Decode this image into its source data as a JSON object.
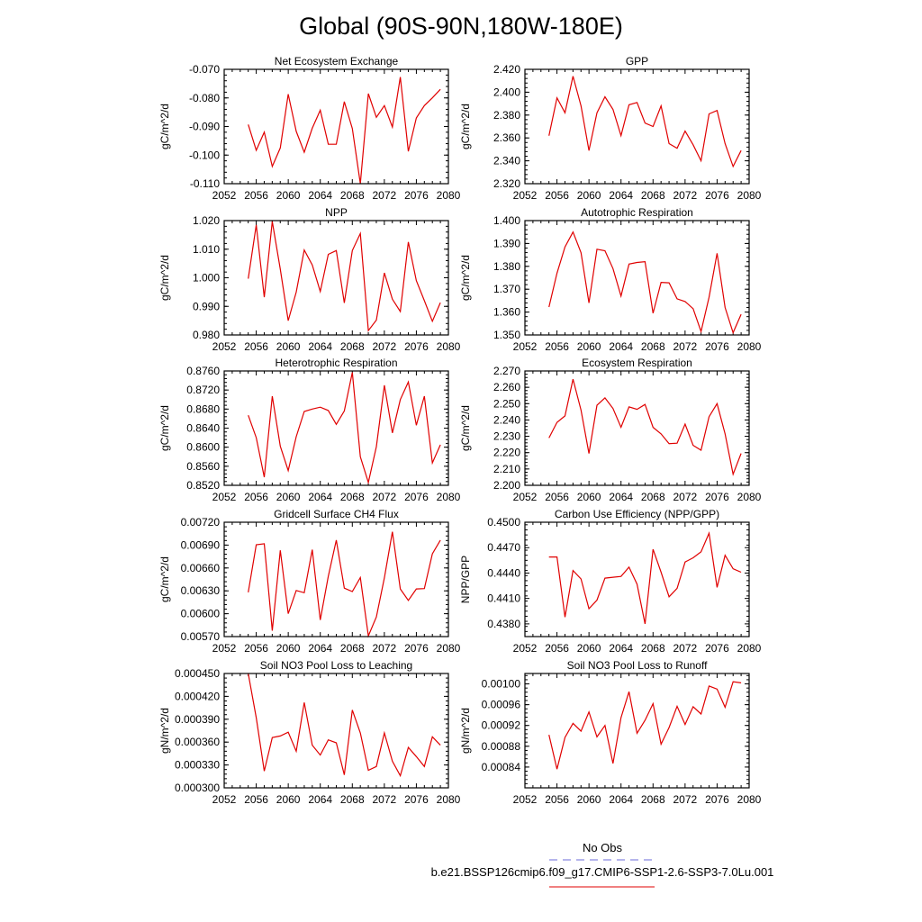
{
  "figure": {
    "title": "Global (90S-90N,180W-180E)"
  },
  "legend": {
    "obs_label": "No Obs",
    "obs_color": "#6b6bd8",
    "case_label": "b.e21.BSSP126cmip6.f09_g17.CMIP6-SSP1-2.6-SSP3-7.0Lu.001",
    "case_color": "#e00000"
  },
  "chart_data": [
    {
      "type": "line",
      "title": "Net Ecosystem Exchange",
      "ylabel": "gC/m^2/d",
      "xlim": [
        2052,
        2080
      ],
      "xticks": [
        "2052",
        "2056",
        "2060",
        "2064",
        "2068",
        "2072",
        "2076",
        "2080"
      ],
      "ylim": [
        -0.11,
        -0.07
      ],
      "yticks": [
        "-0.110",
        "-0.100",
        "-0.090",
        "-0.080",
        "-0.070"
      ],
      "color": "#e00000",
      "x": [
        2055,
        2056,
        2057,
        2058,
        2059,
        2060,
        2061,
        2062,
        2063,
        2064,
        2065,
        2066,
        2067,
        2068,
        2069,
        2070,
        2071,
        2072,
        2073,
        2074,
        2075,
        2076,
        2077,
        2078,
        2079
      ],
      "values": [
        -0.0893,
        -0.0983,
        -0.092,
        -0.104,
        -0.0975,
        -0.0787,
        -0.0917,
        -0.099,
        -0.0906,
        -0.0843,
        -0.0962,
        -0.0962,
        -0.0813,
        -0.0907,
        -0.11,
        -0.0785,
        -0.0868,
        -0.0827,
        -0.0902,
        -0.0727,
        -0.0987,
        -0.087,
        -0.0827,
        -0.08,
        -0.077
      ]
    },
    {
      "type": "line",
      "title": "GPP",
      "ylabel": "gC/m^2/d",
      "xlim": [
        2052,
        2080
      ],
      "xticks": [
        "2052",
        "2056",
        "2060",
        "2064",
        "2068",
        "2072",
        "2076",
        "2080"
      ],
      "ylim": [
        2.32,
        2.42
      ],
      "yticks": [
        "2.320",
        "2.340",
        "2.360",
        "2.380",
        "2.400",
        "2.420"
      ],
      "color": "#e00000",
      "x": [
        2055,
        2056,
        2057,
        2058,
        2059,
        2060,
        2061,
        2062,
        2063,
        2064,
        2065,
        2066,
        2067,
        2068,
        2069,
        2070,
        2071,
        2072,
        2073,
        2074,
        2075,
        2076,
        2077,
        2078,
        2079
      ],
      "values": [
        2.362,
        2.395,
        2.382,
        2.414,
        2.388,
        2.349,
        2.382,
        2.396,
        2.385,
        2.362,
        2.389,
        2.391,
        2.373,
        2.37,
        2.388,
        2.355,
        2.351,
        2.366,
        2.354,
        2.34,
        2.381,
        2.384,
        2.355,
        2.335,
        2.349
      ]
    },
    {
      "type": "line",
      "title": "NPP",
      "ylabel": "gC/m^2/d",
      "xlim": [
        2052,
        2080
      ],
      "xticks": [
        "2052",
        "2056",
        "2060",
        "2064",
        "2068",
        "2072",
        "2076",
        "2080"
      ],
      "ylim": [
        0.98,
        1.02
      ],
      "yticks": [
        "0.980",
        "0.990",
        "1.000",
        "1.010",
        "1.020"
      ],
      "color": "#e00000",
      "x": [
        2055,
        2056,
        2057,
        2058,
        2059,
        2060,
        2061,
        2062,
        2063,
        2064,
        2065,
        2066,
        2067,
        2068,
        2069,
        2070,
        2071,
        2072,
        2073,
        2074,
        2075,
        2076,
        2077,
        2078,
        2079
      ],
      "values": [
        0.9997,
        1.0185,
        0.9932,
        1.0197,
        1.003,
        0.985,
        0.995,
        1.0097,
        1.0045,
        0.9952,
        1.0082,
        1.0095,
        0.9912,
        1.0095,
        1.0155,
        0.9815,
        0.9852,
        1.0017,
        0.9925,
        0.9882,
        1.0125,
        0.999,
        0.992,
        0.9848,
        0.9913
      ]
    },
    {
      "type": "line",
      "title": "Autotrophic Respiration",
      "ylabel": "gC/m^2/d",
      "xlim": [
        2052,
        2080
      ],
      "xticks": [
        "2052",
        "2056",
        "2060",
        "2064",
        "2068",
        "2072",
        "2076",
        "2080"
      ],
      "ylim": [
        1.35,
        1.4
      ],
      "yticks": [
        "1.350",
        "1.360",
        "1.370",
        "1.380",
        "1.390",
        "1.400"
      ],
      "color": "#e00000",
      "x": [
        2055,
        2056,
        2057,
        2058,
        2059,
        2060,
        2061,
        2062,
        2063,
        2064,
        2065,
        2066,
        2067,
        2068,
        2069,
        2070,
        2071,
        2072,
        2073,
        2074,
        2075,
        2076,
        2077,
        2078,
        2079
      ],
      "values": [
        1.3622,
        1.377,
        1.3885,
        1.395,
        1.386,
        1.364,
        1.3875,
        1.3868,
        1.379,
        1.367,
        1.381,
        1.3817,
        1.382,
        1.3595,
        1.373,
        1.3728,
        1.3658,
        1.3646,
        1.3615,
        1.3515,
        1.3665,
        1.3857,
        1.362,
        1.351,
        1.359
      ]
    },
    {
      "type": "line",
      "title": "Heterotrophic Respiration",
      "ylabel": "gC/m^2/d",
      "xlim": [
        2052,
        2080
      ],
      "xticks": [
        "2052",
        "2056",
        "2060",
        "2064",
        "2068",
        "2072",
        "2076",
        "2080"
      ],
      "ylim": [
        0.852,
        0.876
      ],
      "yticks": [
        "0.8520",
        "0.8560",
        "0.8600",
        "0.8640",
        "0.8680",
        "0.8720",
        "0.8760"
      ],
      "color": "#e00000",
      "x": [
        2055,
        2056,
        2057,
        2058,
        2059,
        2060,
        2061,
        2062,
        2063,
        2064,
        2065,
        2066,
        2067,
        2068,
        2069,
        2070,
        2071,
        2072,
        2073,
        2074,
        2075,
        2076,
        2077,
        2078,
        2079
      ],
      "values": [
        0.8667,
        0.862,
        0.8537,
        0.8707,
        0.8602,
        0.8551,
        0.8622,
        0.8675,
        0.868,
        0.8684,
        0.8677,
        0.8648,
        0.8676,
        0.8757,
        0.858,
        0.8526,
        0.8601,
        0.873,
        0.863,
        0.87,
        0.8737,
        0.8646,
        0.8707,
        0.8567,
        0.8605
      ]
    },
    {
      "type": "line",
      "title": "Ecosystem Respiration",
      "ylabel": "gC/m^2/d",
      "xlim": [
        2052,
        2080
      ],
      "xticks": [
        "2052",
        "2056",
        "2060",
        "2064",
        "2068",
        "2072",
        "2076",
        "2080"
      ],
      "ylim": [
        2.2,
        2.27
      ],
      "yticks": [
        "2.200",
        "2.210",
        "2.220",
        "2.230",
        "2.240",
        "2.250",
        "2.260",
        "2.270"
      ],
      "color": "#e00000",
      "x": [
        2055,
        2056,
        2057,
        2058,
        2059,
        2060,
        2061,
        2062,
        2063,
        2064,
        2065,
        2066,
        2067,
        2068,
        2069,
        2070,
        2071,
        2072,
        2073,
        2074,
        2075,
        2076,
        2077,
        2078,
        2079
      ],
      "values": [
        2.229,
        2.2385,
        2.2425,
        2.265,
        2.246,
        2.2195,
        2.249,
        2.2535,
        2.247,
        2.2355,
        2.248,
        2.2465,
        2.2495,
        2.2355,
        2.2315,
        2.2255,
        2.2258,
        2.2375,
        2.2245,
        2.2215,
        2.242,
        2.25,
        2.2315,
        2.2068,
        2.2195
      ]
    },
    {
      "type": "line",
      "title": "Gridcell Surface CH4 Flux",
      "ylabel": "gC/m^2/d",
      "xlim": [
        2052,
        2080
      ],
      "xticks": [
        "2052",
        "2056",
        "2060",
        "2064",
        "2068",
        "2072",
        "2076",
        "2080"
      ],
      "ylim": [
        0.0057,
        0.0072
      ],
      "yticks": [
        "0.00570",
        "0.00600",
        "0.00630",
        "0.00660",
        "0.00690",
        "0.00720"
      ],
      "color": "#e00000",
      "x": [
        2055,
        2056,
        2057,
        2058,
        2059,
        2060,
        2061,
        2062,
        2063,
        2064,
        2065,
        2066,
        2067,
        2068,
        2069,
        2070,
        2071,
        2072,
        2073,
        2074,
        2075,
        2076,
        2077,
        2078,
        2079
      ],
      "values": [
        0.00628,
        0.006905,
        0.006918,
        0.005778,
        0.006832,
        0.006,
        0.006305,
        0.006275,
        0.00684,
        0.005918,
        0.00649,
        0.006965,
        0.006335,
        0.00629,
        0.006475,
        0.00571,
        0.005958,
        0.00647,
        0.007075,
        0.006325,
        0.006175,
        0.006325,
        0.00633,
        0.006785,
        0.006965
      ]
    },
    {
      "type": "line",
      "title": "Carbon Use Efficiency (NPP/GPP)",
      "ylabel": "NPP/GPP",
      "xlim": [
        2052,
        2080
      ],
      "xticks": [
        "2052",
        "2056",
        "2060",
        "2064",
        "2068",
        "2072",
        "2076",
        "2080"
      ],
      "ylim": [
        0.4365,
        0.45
      ],
      "yticks": [
        "0.4380",
        "0.4410",
        "0.4440",
        "0.4470",
        "0.4500"
      ],
      "color": "#e00000",
      "x": [
        2055,
        2056,
        2057,
        2058,
        2059,
        2060,
        2061,
        2062,
        2063,
        2064,
        2065,
        2066,
        2067,
        2068,
        2069,
        2070,
        2071,
        2072,
        2073,
        2074,
        2075,
        2076,
        2077,
        2078,
        2079
      ],
      "values": [
        0.4459,
        0.4459,
        0.4388,
        0.4443,
        0.4433,
        0.4398,
        0.4408,
        0.4434,
        0.4435,
        0.4436,
        0.4447,
        0.4427,
        0.438,
        0.4468,
        0.4441,
        0.4412,
        0.4422,
        0.4453,
        0.4458,
        0.4465,
        0.4487,
        0.4423,
        0.4461,
        0.4445,
        0.4441
      ]
    },
    {
      "type": "line",
      "title": "Soil NO3 Pool Loss to Leaching",
      "ylabel": "gN/m^2/d",
      "xlim": [
        2052,
        2080
      ],
      "xticks": [
        "2052",
        "2056",
        "2060",
        "2064",
        "2068",
        "2072",
        "2076",
        "2080"
      ],
      "ylim": [
        0.0003,
        0.00045
      ],
      "yticks": [
        "0.000300",
        "0.000330",
        "0.000360",
        "0.000390",
        "0.000420",
        "0.000450"
      ],
      "color": "#e00000",
      "x": [
        2055,
        2056,
        2057,
        2058,
        2059,
        2060,
        2061,
        2062,
        2063,
        2064,
        2065,
        2066,
        2067,
        2068,
        2069,
        2070,
        2071,
        2072,
        2073,
        2074,
        2075,
        2076,
        2077,
        2078,
        2079
      ],
      "values": [
        0.00045,
        0.000392,
        0.000322,
        0.000366,
        0.000368,
        0.000373,
        0.000348,
        0.000412,
        0.000356,
        0.000343,
        0.000363,
        0.000359,
        0.000317,
        0.000402,
        0.000372,
        0.000323,
        0.000328,
        0.000372,
        0.000335,
        0.000316,
        0.000353,
        0.000341,
        0.000328,
        0.000367,
        0.000356
      ]
    },
    {
      "type": "line",
      "title": "Soil NO3 Pool Loss to Runoff",
      "ylabel": "gN/m^2/d",
      "xlim": [
        2052,
        2080
      ],
      "xticks": [
        "2052",
        "2056",
        "2060",
        "2064",
        "2068",
        "2072",
        "2076",
        "2080"
      ],
      "ylim": [
        0.0008,
        0.00102
      ],
      "yticks": [
        "0.00084",
        "0.00088",
        "0.00092",
        "0.00096",
        "0.00100"
      ],
      "color": "#e00000",
      "x": [
        2055,
        2056,
        2057,
        2058,
        2059,
        2060,
        2061,
        2062,
        2063,
        2064,
        2065,
        2066,
        2067,
        2068,
        2069,
        2070,
        2071,
        2072,
        2073,
        2074,
        2075,
        2076,
        2077,
        2078,
        2079
      ],
      "values": [
        0.000902,
        0.000836,
        0.000897,
        0.000924,
        0.000909,
        0.000946,
        0.000898,
        0.00092,
        0.000847,
        0.000935,
        0.000985,
        0.000905,
        0.00093,
        0.000962,
        0.000884,
        0.000916,
        0.000957,
        0.000922,
        0.000956,
        0.000942,
        0.000996,
        0.00099,
        0.000955,
        0.001004,
        0.001002
      ]
    }
  ]
}
